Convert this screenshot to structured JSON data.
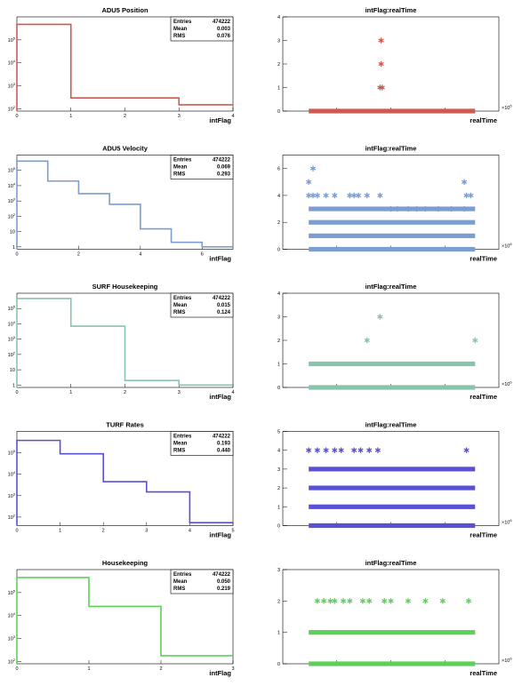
{
  "stats_labels": {
    "entries": "Entries",
    "mean": "Mean",
    "rms": "RMS"
  },
  "colors": [
    "#d05a52",
    "#7b9dd0",
    "#88c4a9",
    "#5a50d5",
    "#5ed05a"
  ],
  "chart_data": [
    {
      "type": "bar",
      "title": "ADU5 Position",
      "xlabel": "intFlag",
      "x_ticks": [
        "0",
        "1",
        "2",
        "3",
        "4"
      ],
      "y_ticks": [
        "10^2",
        "10^3",
        "10^4",
        "10^5"
      ],
      "log_y": true,
      "xlim": [
        0,
        4
      ],
      "ylim": [
        80,
        1000000
      ],
      "bins": [
        {
          "x0": 0,
          "x1": 1,
          "v": 470000
        },
        {
          "x0": 1,
          "x1": 3,
          "v": 300
        },
        {
          "x0": 3,
          "x1": 4,
          "v": 150
        }
      ],
      "stats": {
        "entries": "474222",
        "mean": "0.003",
        "rms": "0.076"
      },
      "color": "#d05a52"
    },
    {
      "type": "bar",
      "title": "ADU5 Velocity",
      "xlabel": "intFlag",
      "x_ticks": [
        "0",
        "2",
        "4",
        "6"
      ],
      "x_tick_values": [
        0,
        2,
        4,
        6
      ],
      "y_ticks": [
        "1",
        "10",
        "10^2",
        "10^3",
        "10^4",
        "10^5"
      ],
      "log_y": true,
      "xlim": [
        0,
        7
      ],
      "ylim": [
        0.7,
        1000000
      ],
      "bins": [
        {
          "x0": 0,
          "x1": 1,
          "v": 400000
        },
        {
          "x0": 1,
          "x1": 2,
          "v": 20000
        },
        {
          "x0": 2,
          "x1": 3,
          "v": 3000
        },
        {
          "x0": 3,
          "x1": 4,
          "v": 600
        },
        {
          "x0": 4,
          "x1": 5,
          "v": 15
        },
        {
          "x0": 5,
          "x1": 6,
          "v": 2
        },
        {
          "x0": 6,
          "x1": 7,
          "v": 1
        }
      ],
      "stats": {
        "entries": "474222",
        "mean": "0.069",
        "rms": "0.293"
      },
      "color": "#7b9dd0"
    },
    {
      "type": "bar",
      "title": "SURF Housekeeping",
      "xlabel": "intFlag",
      "x_ticks": [
        "0",
        "1",
        "2",
        "3",
        "4"
      ],
      "y_ticks": [
        "1",
        "10",
        "10^2",
        "10^3",
        "10^4",
        "10^5"
      ],
      "log_y": true,
      "xlim": [
        0,
        4
      ],
      "ylim": [
        0.7,
        1000000
      ],
      "bins": [
        {
          "x0": 0,
          "x1": 1,
          "v": 450000
        },
        {
          "x0": 1,
          "x1": 2,
          "v": 7000
        },
        {
          "x0": 2,
          "x1": 3,
          "v": 2
        },
        {
          "x0": 3,
          "x1": 4,
          "v": 1
        }
      ],
      "stats": {
        "entries": "474222",
        "mean": "0.015",
        "rms": "0.124"
      },
      "color": "#88c4a9"
    },
    {
      "type": "bar",
      "title": "TURF Rates",
      "xlabel": "intFlag",
      "x_ticks": [
        "0",
        "1",
        "2",
        "3",
        "4",
        "5"
      ],
      "y_ticks": [
        "10^2",
        "10^3",
        "10^4",
        "10^5"
      ],
      "log_y": true,
      "xlim": [
        0,
        5
      ],
      "ylim": [
        40,
        1000000
      ],
      "bins": [
        {
          "x0": 0,
          "x1": 1,
          "v": 380000
        },
        {
          "x0": 1,
          "x1": 2,
          "v": 90000
        },
        {
          "x0": 2,
          "x1": 3,
          "v": 4500
        },
        {
          "x0": 3,
          "x1": 4,
          "v": 1500
        },
        {
          "x0": 4,
          "x1": 5,
          "v": 55
        }
      ],
      "stats": {
        "entries": "474222",
        "mean": "0.193",
        "rms": "0.440"
      },
      "color": "#5a50d5"
    },
    {
      "type": "bar",
      "title": "Housekeeping",
      "xlabel": "intFlag",
      "x_ticks": [
        "0",
        "1",
        "2",
        "3"
      ],
      "y_ticks": [
        "10^2",
        "10^3",
        "10^4",
        "10^5"
      ],
      "log_y": true,
      "xlim": [
        0,
        3
      ],
      "ylim": [
        80,
        1000000
      ],
      "bins": [
        {
          "x0": 0,
          "x1": 1,
          "v": 450000
        },
        {
          "x0": 1,
          "x1": 2,
          "v": 25000
        },
        {
          "x0": 2,
          "x1": 3,
          "v": 180
        }
      ],
      "stats": {
        "entries": "474222",
        "mean": "0.050",
        "rms": "0.219"
      },
      "color": "#5ed05a"
    },
    {
      "type": "scatter",
      "title": "intFlag:realTime",
      "xlabel": "realTime",
      "x_exponent": "×10^6",
      "x_ticks": [
        "",
        "",
        ""
      ],
      "y_ticks": [
        "0",
        "1",
        "2",
        "3",
        "4"
      ],
      "ylim": [
        0,
        4
      ],
      "xlim": [
        0,
        1
      ],
      "bands": [
        {
          "y": 0,
          "x0": 0.12,
          "x1": 0.89
        }
      ],
      "points": [
        {
          "x": 0.45,
          "y": 1
        },
        {
          "x": 0.46,
          "y": 1
        },
        {
          "x": 0.455,
          "y": 2
        },
        {
          "x": 0.455,
          "y": 3
        }
      ],
      "color": "#d05a52"
    },
    {
      "type": "scatter",
      "title": "intFlag:realTime",
      "xlabel": "realTime",
      "x_exponent": "×10^6",
      "x_ticks": [
        "",
        "",
        ""
      ],
      "y_ticks": [
        "0",
        "2",
        "4",
        "6"
      ],
      "y_tick_values": [
        0,
        2,
        4,
        6
      ],
      "ylim": [
        0,
        7
      ],
      "xlim": [
        0,
        1
      ],
      "bands": [
        {
          "y": 0,
          "x0": 0.12,
          "x1": 0.89
        },
        {
          "y": 1,
          "x0": 0.12,
          "x1": 0.89
        },
        {
          "y": 2,
          "x0": 0.12,
          "x1": 0.89
        },
        {
          "y": 3,
          "x0": 0.12,
          "x1": 0.89
        }
      ],
      "points": [
        {
          "x": 0.12,
          "y": 4
        },
        {
          "x": 0.14,
          "y": 4
        },
        {
          "x": 0.16,
          "y": 4
        },
        {
          "x": 0.2,
          "y": 4
        },
        {
          "x": 0.24,
          "y": 4
        },
        {
          "x": 0.31,
          "y": 4
        },
        {
          "x": 0.33,
          "y": 4
        },
        {
          "x": 0.35,
          "y": 4
        },
        {
          "x": 0.39,
          "y": 4
        },
        {
          "x": 0.45,
          "y": 4
        },
        {
          "x": 0.12,
          "y": 5
        },
        {
          "x": 0.14,
          "y": 6
        },
        {
          "x": 0.84,
          "y": 5
        },
        {
          "x": 0.85,
          "y": 4
        },
        {
          "x": 0.87,
          "y": 4
        },
        {
          "x": 0.5,
          "y": 3
        },
        {
          "x": 0.53,
          "y": 3
        },
        {
          "x": 0.58,
          "y": 3
        },
        {
          "x": 0.62,
          "y": 3
        },
        {
          "x": 0.66,
          "y": 3
        },
        {
          "x": 0.72,
          "y": 3
        },
        {
          "x": 0.78,
          "y": 3
        },
        {
          "x": 0.84,
          "y": 3
        }
      ],
      "color": "#7b9dd0"
    },
    {
      "type": "scatter",
      "title": "intFlag:realTime",
      "xlabel": "realTime",
      "x_exponent": "×10^6",
      "x_ticks": [
        "",
        "",
        ""
      ],
      "y_ticks": [
        "0",
        "1",
        "2",
        "3",
        "4"
      ],
      "ylim": [
        0,
        4
      ],
      "xlim": [
        0,
        1
      ],
      "bands": [
        {
          "y": 0,
          "x0": 0.12,
          "x1": 0.89
        },
        {
          "y": 1,
          "x0": 0.12,
          "x1": 0.89
        }
      ],
      "points": [
        {
          "x": 0.39,
          "y": 2
        },
        {
          "x": 0.45,
          "y": 3
        },
        {
          "x": 0.89,
          "y": 2
        }
      ],
      "color": "#88c4a9"
    },
    {
      "type": "scatter",
      "title": "intFlag:realTime",
      "xlabel": "realTime",
      "x_exponent": "×10^6",
      "x_ticks": [
        "",
        "",
        ""
      ],
      "y_ticks": [
        "0",
        "1",
        "2",
        "3",
        "4",
        "5"
      ],
      "ylim": [
        0,
        5
      ],
      "xlim": [
        0,
        1
      ],
      "bands": [
        {
          "y": 0,
          "x0": 0.12,
          "x1": 0.89
        },
        {
          "y": 1,
          "x0": 0.12,
          "x1": 0.89
        },
        {
          "y": 2,
          "x0": 0.12,
          "x1": 0.89
        },
        {
          "y": 3,
          "x0": 0.12,
          "x1": 0.89
        }
      ],
      "points": [
        {
          "x": 0.12,
          "y": 4
        },
        {
          "x": 0.16,
          "y": 4
        },
        {
          "x": 0.2,
          "y": 4
        },
        {
          "x": 0.24,
          "y": 4
        },
        {
          "x": 0.27,
          "y": 4
        },
        {
          "x": 0.33,
          "y": 4
        },
        {
          "x": 0.36,
          "y": 4
        },
        {
          "x": 0.4,
          "y": 4
        },
        {
          "x": 0.44,
          "y": 4
        },
        {
          "x": 0.85,
          "y": 4
        }
      ],
      "color": "#5a50d5"
    },
    {
      "type": "scatter",
      "title": "intFlag:realTime",
      "xlabel": "realTime",
      "x_exponent": "×10^6",
      "x_ticks": [
        "",
        "",
        ""
      ],
      "y_ticks": [
        "0",
        "1",
        "2",
        "3"
      ],
      "ylim": [
        0,
        3
      ],
      "xlim": [
        0,
        1
      ],
      "bands": [
        {
          "y": 0,
          "x0": 0.12,
          "x1": 0.89
        },
        {
          "y": 1,
          "x0": 0.12,
          "x1": 0.89
        }
      ],
      "points": [
        {
          "x": 0.16,
          "y": 2
        },
        {
          "x": 0.19,
          "y": 2
        },
        {
          "x": 0.22,
          "y": 2
        },
        {
          "x": 0.24,
          "y": 2
        },
        {
          "x": 0.28,
          "y": 2
        },
        {
          "x": 0.31,
          "y": 2
        },
        {
          "x": 0.37,
          "y": 2
        },
        {
          "x": 0.4,
          "y": 2
        },
        {
          "x": 0.47,
          "y": 2
        },
        {
          "x": 0.5,
          "y": 2
        },
        {
          "x": 0.58,
          "y": 2
        },
        {
          "x": 0.66,
          "y": 2
        },
        {
          "x": 0.74,
          "y": 2
        },
        {
          "x": 0.86,
          "y": 2
        }
      ],
      "color": "#5ed05a"
    }
  ]
}
